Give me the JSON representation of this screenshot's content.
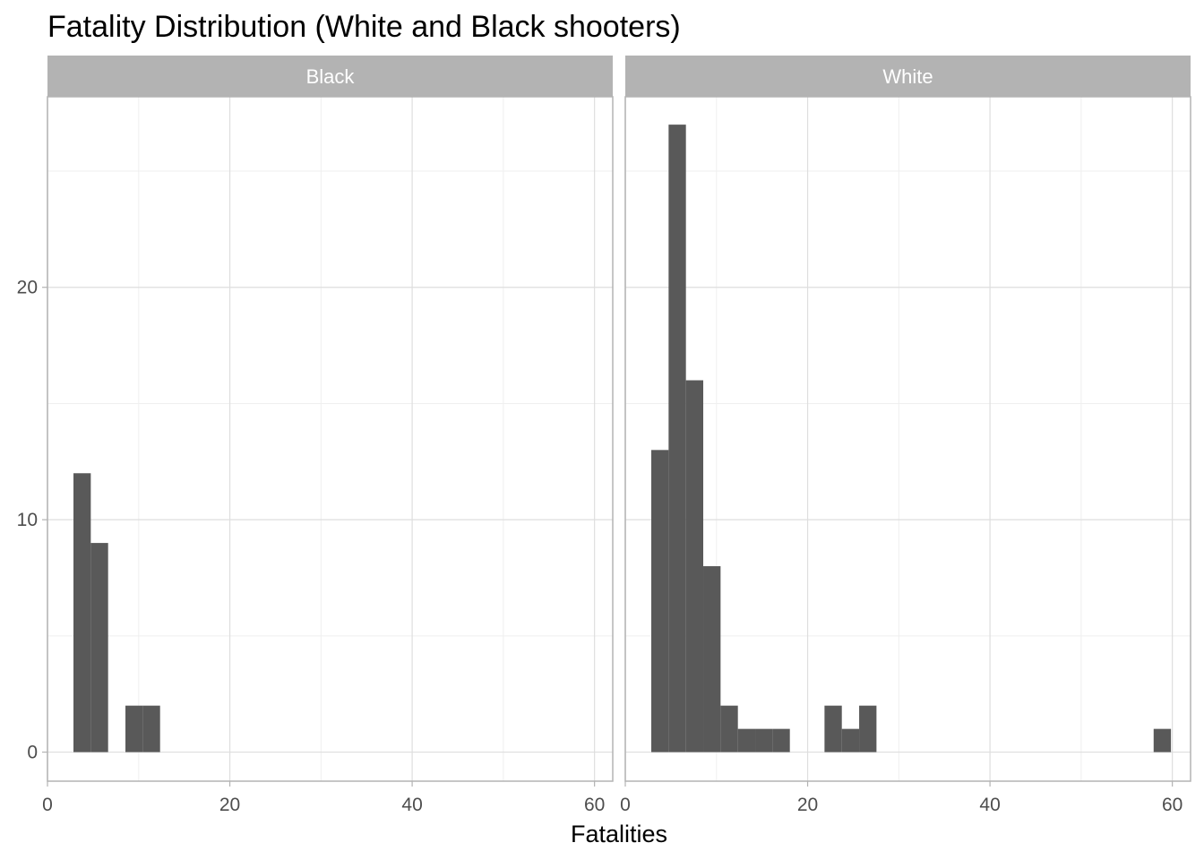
{
  "chart_data": {
    "type": "bar",
    "title": "Fatality Distribution (White and Black shooters)",
    "xlabel": "Fatalities",
    "ylabel": "",
    "xlim": [
      0,
      62
    ],
    "ylim": [
      -1.25,
      28.2
    ],
    "x_ticks": [
      0,
      20,
      40,
      60
    ],
    "y_ticks": [
      0,
      10,
      20
    ],
    "grid": true,
    "bin_width": 1.9,
    "bar_color": "#595959",
    "strip_color": "#b3b3b3",
    "panels": [
      {
        "name": "Black",
        "bins": [
          {
            "x0": 2.85,
            "x1": 4.75,
            "count": 12
          },
          {
            "x0": 4.75,
            "x1": 6.65,
            "count": 9
          },
          {
            "x0": 8.55,
            "x1": 10.45,
            "count": 2
          },
          {
            "x0": 10.45,
            "x1": 12.35,
            "count": 2
          }
        ]
      },
      {
        "name": "White",
        "bins": [
          {
            "x0": 2.85,
            "x1": 4.75,
            "count": 13
          },
          {
            "x0": 4.75,
            "x1": 6.65,
            "count": 27
          },
          {
            "x0": 6.65,
            "x1": 8.55,
            "count": 16
          },
          {
            "x0": 8.55,
            "x1": 10.45,
            "count": 8
          },
          {
            "x0": 10.45,
            "x1": 12.35,
            "count": 2
          },
          {
            "x0": 12.35,
            "x1": 14.25,
            "count": 1
          },
          {
            "x0": 14.25,
            "x1": 16.15,
            "count": 1
          },
          {
            "x0": 16.15,
            "x1": 18.05,
            "count": 1
          },
          {
            "x0": 21.85,
            "x1": 23.75,
            "count": 2
          },
          {
            "x0": 23.75,
            "x1": 25.65,
            "count": 1
          },
          {
            "x0": 25.65,
            "x1": 27.55,
            "count": 2
          },
          {
            "x0": 57.95,
            "x1": 59.85,
            "count": 1
          }
        ]
      }
    ]
  }
}
